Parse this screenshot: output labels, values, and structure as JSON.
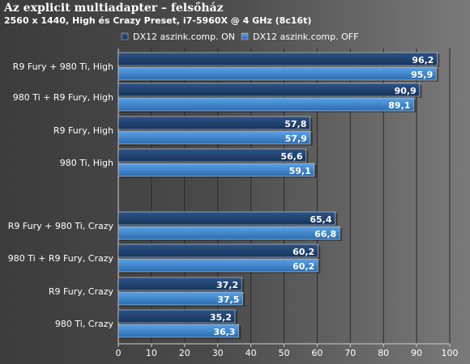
{
  "chart_data": {
    "type": "bar",
    "orientation": "horizontal",
    "title": "Az explicit multiadapter – felsőház",
    "subtitle": "2560 x 1440, High és Crazy Preset, i7-5960X @ 4 GHz (8c16t)",
    "categories": [
      "R9 Fury + 980 Ti, High",
      "980 Ti + R9 Fury, High",
      "R9 Fury, High",
      "980 Ti, High",
      "R9 Fury + 980 Ti, Crazy",
      "980 Ti + R9 Fury, Crazy",
      "R9 Fury, Crazy",
      "980 Ti, Crazy"
    ],
    "series": [
      {
        "name": "DX12 aszink.comp. ON",
        "color": "#1f3f6b",
        "values": [
          96.2,
          90.9,
          57.8,
          56.6,
          65.4,
          60.2,
          37.2,
          35.2
        ]
      },
      {
        "name": "DX12 aszink.comp. OFF",
        "color": "#3a84cc",
        "values": [
          95.9,
          89.1,
          57.9,
          59.1,
          66.8,
          60.2,
          37.5,
          36.3
        ]
      }
    ],
    "value_labels": [
      [
        "96,2",
        "90,9",
        "57,8",
        "56,6",
        "65,4",
        "60,2",
        "37,2",
        "35,2"
      ],
      [
        "95,9",
        "89,1",
        "57,9",
        "59,1",
        "66,8",
        "60,2",
        "37,5",
        "36,3"
      ]
    ],
    "xlim": [
      0,
      100
    ],
    "xticks": [
      0,
      10,
      20,
      30,
      40,
      50,
      60,
      70,
      80,
      90,
      100
    ],
    "xlabel": "",
    "ylabel": "",
    "grid": true,
    "legend_position": "top"
  }
}
